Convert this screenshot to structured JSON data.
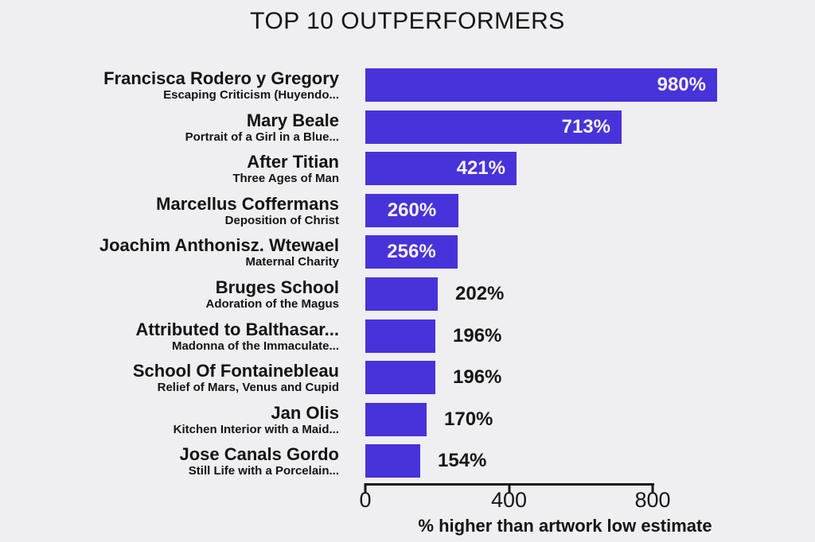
{
  "title": "TOP 10 OUTPERFORMERS",
  "colors": {
    "bar": "#4733d9",
    "background": "#efeef0",
    "text": "#141414",
    "value_inside": "#f5f3f2",
    "value_outside": "#171717"
  },
  "axis": {
    "xlabel": "% higher than artwork low estimate",
    "ticks": [
      {
        "label": "0",
        "value": 0
      },
      {
        "label": "400",
        "value": 400
      },
      {
        "label": "800",
        "value": 800
      }
    ]
  },
  "rows": [
    {
      "artist": "Francisca Rodero y Gregory",
      "work": "Escaping Criticism (Huyendo...",
      "value": 980,
      "label": "980%",
      "label_position": "inside-right"
    },
    {
      "artist": "Mary Beale",
      "work": "Portrait of a Girl in a Blue...",
      "value": 713,
      "label": "713%",
      "label_position": "inside-right"
    },
    {
      "artist": "After Titian",
      "work": "Three Ages of Man",
      "value": 421,
      "label": "421%",
      "label_position": "inside-right"
    },
    {
      "artist": "Marcellus Coffermans",
      "work": "Deposition of Christ",
      "value": 260,
      "label": "260%",
      "label_position": "inside-center"
    },
    {
      "artist": "Joachim Anthonisz. Wtewael",
      "work": "Maternal Charity",
      "value": 256,
      "label": "256%",
      "label_position": "inside-center"
    },
    {
      "artist": "Bruges School",
      "work": "Adoration of the Magus",
      "value": 202,
      "label": "202%",
      "label_position": "outside"
    },
    {
      "artist": "Attributed to Balthasar...",
      "work": "Madonna of the Immaculate...",
      "value": 196,
      "label": "196%",
      "label_position": "outside"
    },
    {
      "artist": "School Of Fontainebleau",
      "work": "Relief of Mars, Venus and Cupid",
      "value": 196,
      "label": "196%",
      "label_position": "outside"
    },
    {
      "artist": "Jan Olis",
      "work": "Kitchen Interior with a Maid...",
      "value": 170,
      "label": "170%",
      "label_position": "outside"
    },
    {
      "artist": "Jose Canals Gordo",
      "work": "Still Life with a Porcelain...",
      "value": 154,
      "label": "154%",
      "label_position": "outside"
    }
  ],
  "chart_data": {
    "type": "bar",
    "orientation": "horizontal",
    "title": "TOP 10 OUTPERFORMERS",
    "categories": [
      "Francisca Rodero y Gregory",
      "Mary Beale",
      "After Titian",
      "Marcellus Coffermans",
      "Joachim Anthonisz. Wtewael",
      "Bruges School",
      "Attributed to Balthasar...",
      "School Of Fontainebleau",
      "Jan Olis",
      "Jose Canals Gordo"
    ],
    "category_subtitles": [
      "Escaping Criticism (Huyendo...",
      "Portrait of a Girl in a Blue...",
      "Three Ages of Man",
      "Deposition of Christ",
      "Maternal Charity",
      "Adoration of the Magus",
      "Madonna of the Immaculate...",
      "Relief of Mars, Venus and Cupid",
      "Kitchen Interior with a Maid...",
      "Still Life with a Porcelain..."
    ],
    "values": [
      980,
      713,
      421,
      260,
      256,
      202,
      196,
      196,
      170,
      154
    ],
    "data_labels": [
      "980%",
      "713%",
      "421%",
      "260%",
      "256%",
      "202%",
      "196%",
      "196%",
      "170%",
      "154%"
    ],
    "xlabel": "% higher than artwork low estimate",
    "ylabel": "",
    "xticks": [
      0,
      400,
      800
    ],
    "xlim": [
      0,
      980
    ],
    "grid": false,
    "legend": false
  }
}
